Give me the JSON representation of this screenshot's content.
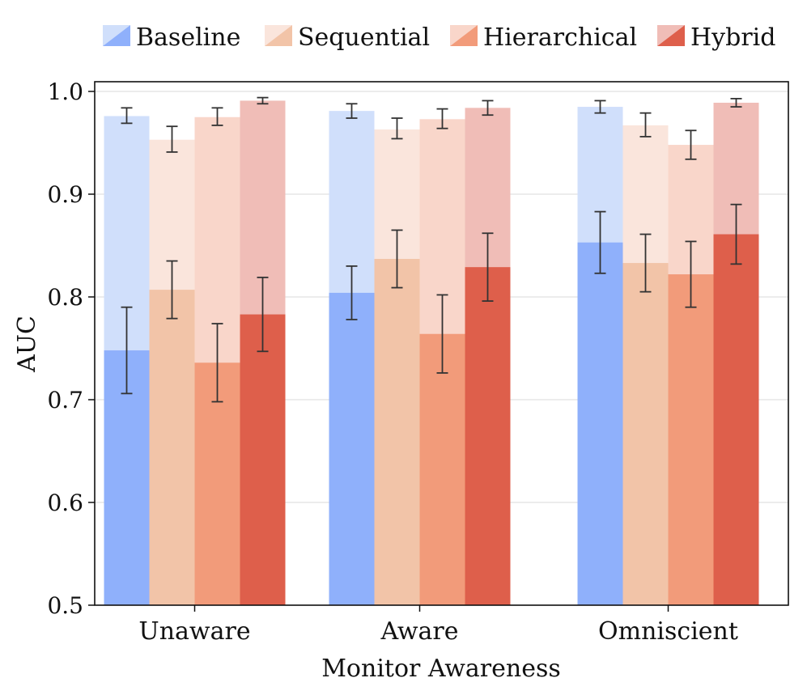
{
  "chart_data": {
    "type": "bar",
    "title": "",
    "xlabel": "Monitor Awareness",
    "ylabel": "AUC",
    "ylim": [
      0.5,
      1.0
    ],
    "yticks": [
      0.5,
      0.6,
      0.7,
      0.8,
      0.9,
      1.0
    ],
    "ytick_labels": [
      "0.5",
      "0.6",
      "0.7",
      "0.8",
      "0.9",
      "1.0"
    ],
    "grid": true,
    "legend_position": "top",
    "categories": [
      "Unaware",
      "Aware",
      "Omniscient"
    ],
    "series": [
      {
        "name": "Baseline",
        "color_light": "#d0dffb",
        "color_dark": "#8fb0fb",
        "high": [
          0.976,
          0.981,
          0.985
        ],
        "high_err": [
          [
            0.969,
            0.984
          ],
          [
            0.974,
            0.988
          ],
          [
            0.979,
            0.991
          ]
        ],
        "low": [
          0.748,
          0.804,
          0.853
        ],
        "low_err": [
          [
            0.706,
            0.79
          ],
          [
            0.778,
            0.83
          ],
          [
            0.823,
            0.883
          ]
        ]
      },
      {
        "name": "Sequential",
        "color_light": "#fae5dc",
        "color_dark": "#f2c4a8",
        "high": [
          0.953,
          0.963,
          0.967
        ],
        "high_err": [
          [
            0.941,
            0.966
          ],
          [
            0.954,
            0.974
          ],
          [
            0.956,
            0.979
          ]
        ],
        "low": [
          0.807,
          0.837,
          0.833
        ],
        "low_err": [
          [
            0.779,
            0.835
          ],
          [
            0.809,
            0.865
          ],
          [
            0.805,
            0.861
          ]
        ]
      },
      {
        "name": "Hierarchical",
        "color_light": "#f9d6ca",
        "color_dark": "#f29b7a",
        "high": [
          0.975,
          0.973,
          0.948
        ],
        "high_err": [
          [
            0.967,
            0.984
          ],
          [
            0.964,
            0.983
          ],
          [
            0.934,
            0.962
          ]
        ],
        "low": [
          0.736,
          0.764,
          0.822
        ],
        "low_err": [
          [
            0.698,
            0.774
          ],
          [
            0.726,
            0.802
          ],
          [
            0.79,
            0.854
          ]
        ]
      },
      {
        "name": "Hybrid",
        "color_light": "#f0bdb7",
        "color_dark": "#de5f4b",
        "high": [
          0.991,
          0.984,
          0.989
        ],
        "high_err": [
          [
            0.988,
            0.994
          ],
          [
            0.977,
            0.991
          ],
          [
            0.985,
            0.993
          ]
        ],
        "low": [
          0.783,
          0.829,
          0.861
        ],
        "low_err": [
          [
            0.747,
            0.819
          ],
          [
            0.796,
            0.862
          ],
          [
            0.832,
            0.89
          ]
        ]
      }
    ]
  }
}
